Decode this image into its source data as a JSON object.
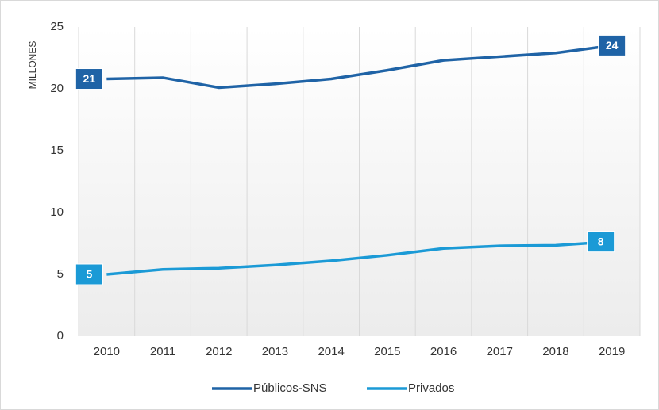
{
  "chart_data": {
    "type": "line",
    "y_label": "MILLONES",
    "categories": [
      "2010",
      "2011",
      "2012",
      "2013",
      "2014",
      "2015",
      "2016",
      "2017",
      "2018",
      "2019"
    ],
    "series": [
      {
        "name": "Públicos-SNS",
        "color": "#1f63a6",
        "values": [
          20.8,
          20.9,
          20.1,
          20.4,
          20.8,
          21.5,
          22.3,
          22.6,
          22.9,
          23.5
        ],
        "value_labels": [
          "21",
          null,
          null,
          null,
          null,
          null,
          null,
          null,
          null,
          "24"
        ]
      },
      {
        "name": "Privados",
        "color": "#1b9ad6",
        "values": [
          5.0,
          5.4,
          5.5,
          5.75,
          6.1,
          6.55,
          7.1,
          7.3,
          7.35,
          7.65
        ],
        "value_labels": [
          "5",
          null,
          null,
          null,
          null,
          null,
          null,
          null,
          null,
          "8"
        ]
      }
    ],
    "ylim": [
      0,
      25
    ],
    "yticks": [
      0,
      5,
      10,
      15,
      20,
      25
    ],
    "grid": true,
    "legend": "bottom"
  }
}
